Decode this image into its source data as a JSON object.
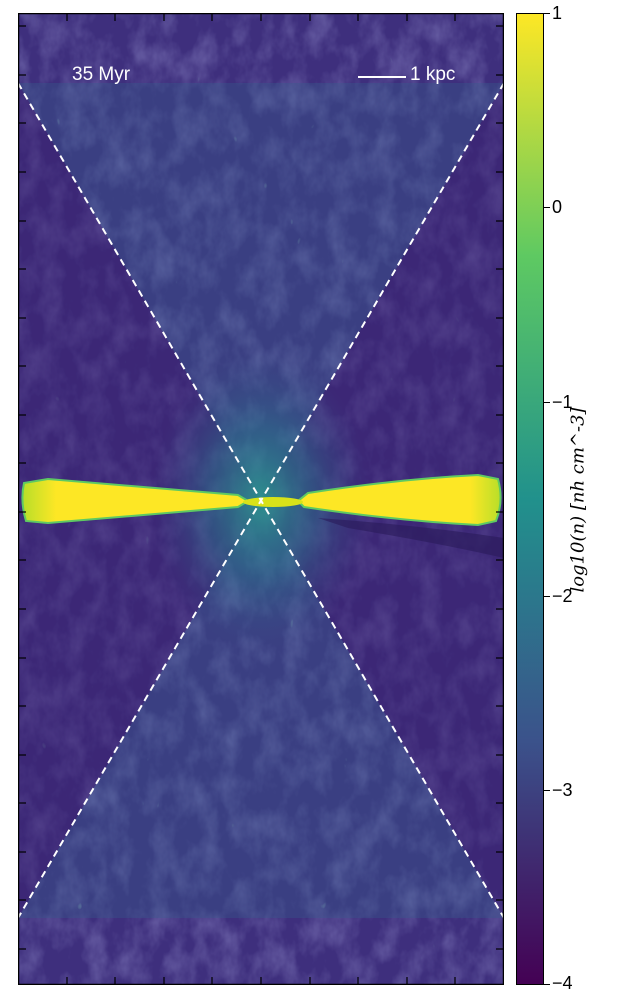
{
  "annotations": {
    "time": "35 Myr",
    "scale": "1 kpc"
  },
  "colorbar": {
    "label": "log10(n) [nh cm^-3]",
    "ticks": [
      "1",
      "0",
      "−1",
      "−2",
      "−3",
      "−4"
    ],
    "range": [
      -4,
      1
    ],
    "colormap": [
      "#440154",
      "#3b528b",
      "#21918c",
      "#5ec962",
      "#fde725"
    ]
  },
  "colors": {
    "background_gas": "#3b2a78",
    "disk": "#fde725",
    "cone_lines": "#ffffff"
  }
}
